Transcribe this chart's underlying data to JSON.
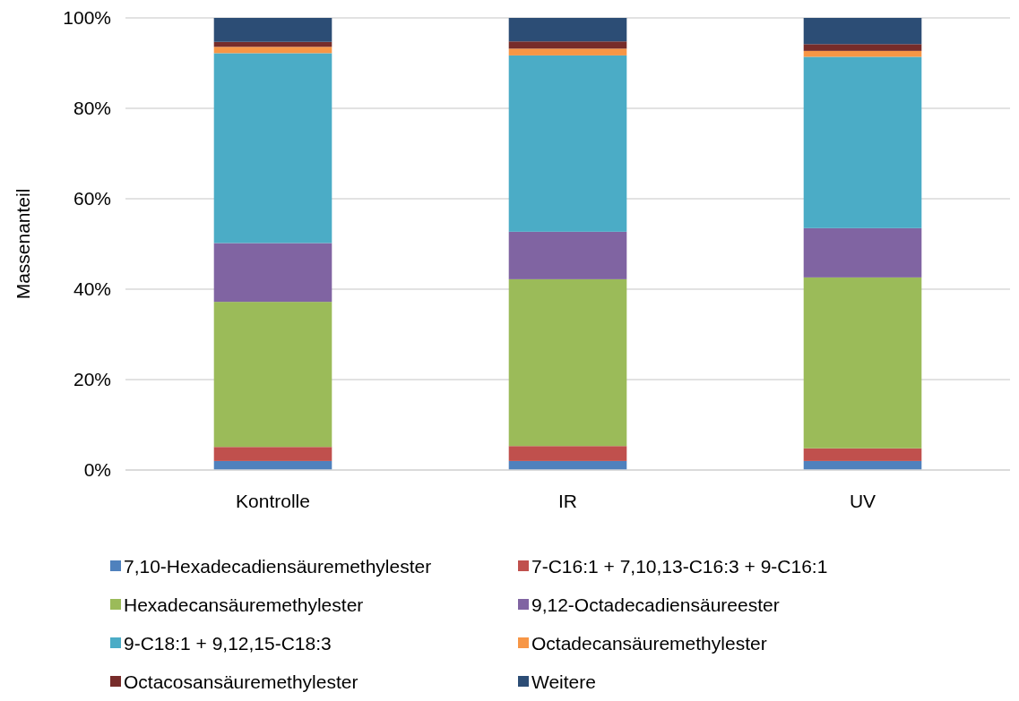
{
  "chart_data": {
    "type": "bar",
    "stacked": true,
    "ylabel": "Massenanteil",
    "categories": [
      "Kontrolle",
      "IR",
      "UV"
    ],
    "series": [
      {
        "name": "7,10-Hexadecadiensäuremethylester",
        "color": "#4f81bd",
        "values": [
          2.0,
          2.0,
          2.0
        ]
      },
      {
        "name": "7-C16:1 + 7,10,13-C16:3 + 9-C16:1",
        "color": "#c0504d",
        "values": [
          3.1,
          3.3,
          2.8
        ]
      },
      {
        "name": "Hexadecansäuremethylester",
        "color": "#9bbb59",
        "values": [
          32.1,
          36.9,
          37.8
        ]
      },
      {
        "name": "9,12-Octadecadiensäureester",
        "color": "#8064a2",
        "values": [
          13.0,
          10.5,
          10.9
        ]
      },
      {
        "name": "9-C18:1 + 9,12,15-C18:3",
        "color": "#4bacc6",
        "values": [
          42.0,
          39.0,
          37.9
        ]
      },
      {
        "name": "Octadecansäuremethylester",
        "color": "#f79646",
        "values": [
          1.4,
          1.5,
          1.3
        ]
      },
      {
        "name": "Octacosansäuremethylester",
        "color": "#772c2a",
        "values": [
          1.1,
          1.6,
          1.5
        ]
      },
      {
        "name": "Weitere",
        "color": "#2c4d75",
        "values": [
          5.3,
          5.2,
          5.8
        ]
      }
    ],
    "ylim": [
      0,
      100
    ],
    "yticks": [
      {
        "value": 0,
        "label": "0%"
      },
      {
        "value": 20,
        "label": "20%"
      },
      {
        "value": 40,
        "label": "40%"
      },
      {
        "value": 60,
        "label": "60%"
      },
      {
        "value": 80,
        "label": "80%"
      },
      {
        "value": 100,
        "label": "100%"
      }
    ],
    "grid": "y",
    "legend": "bottom"
  }
}
